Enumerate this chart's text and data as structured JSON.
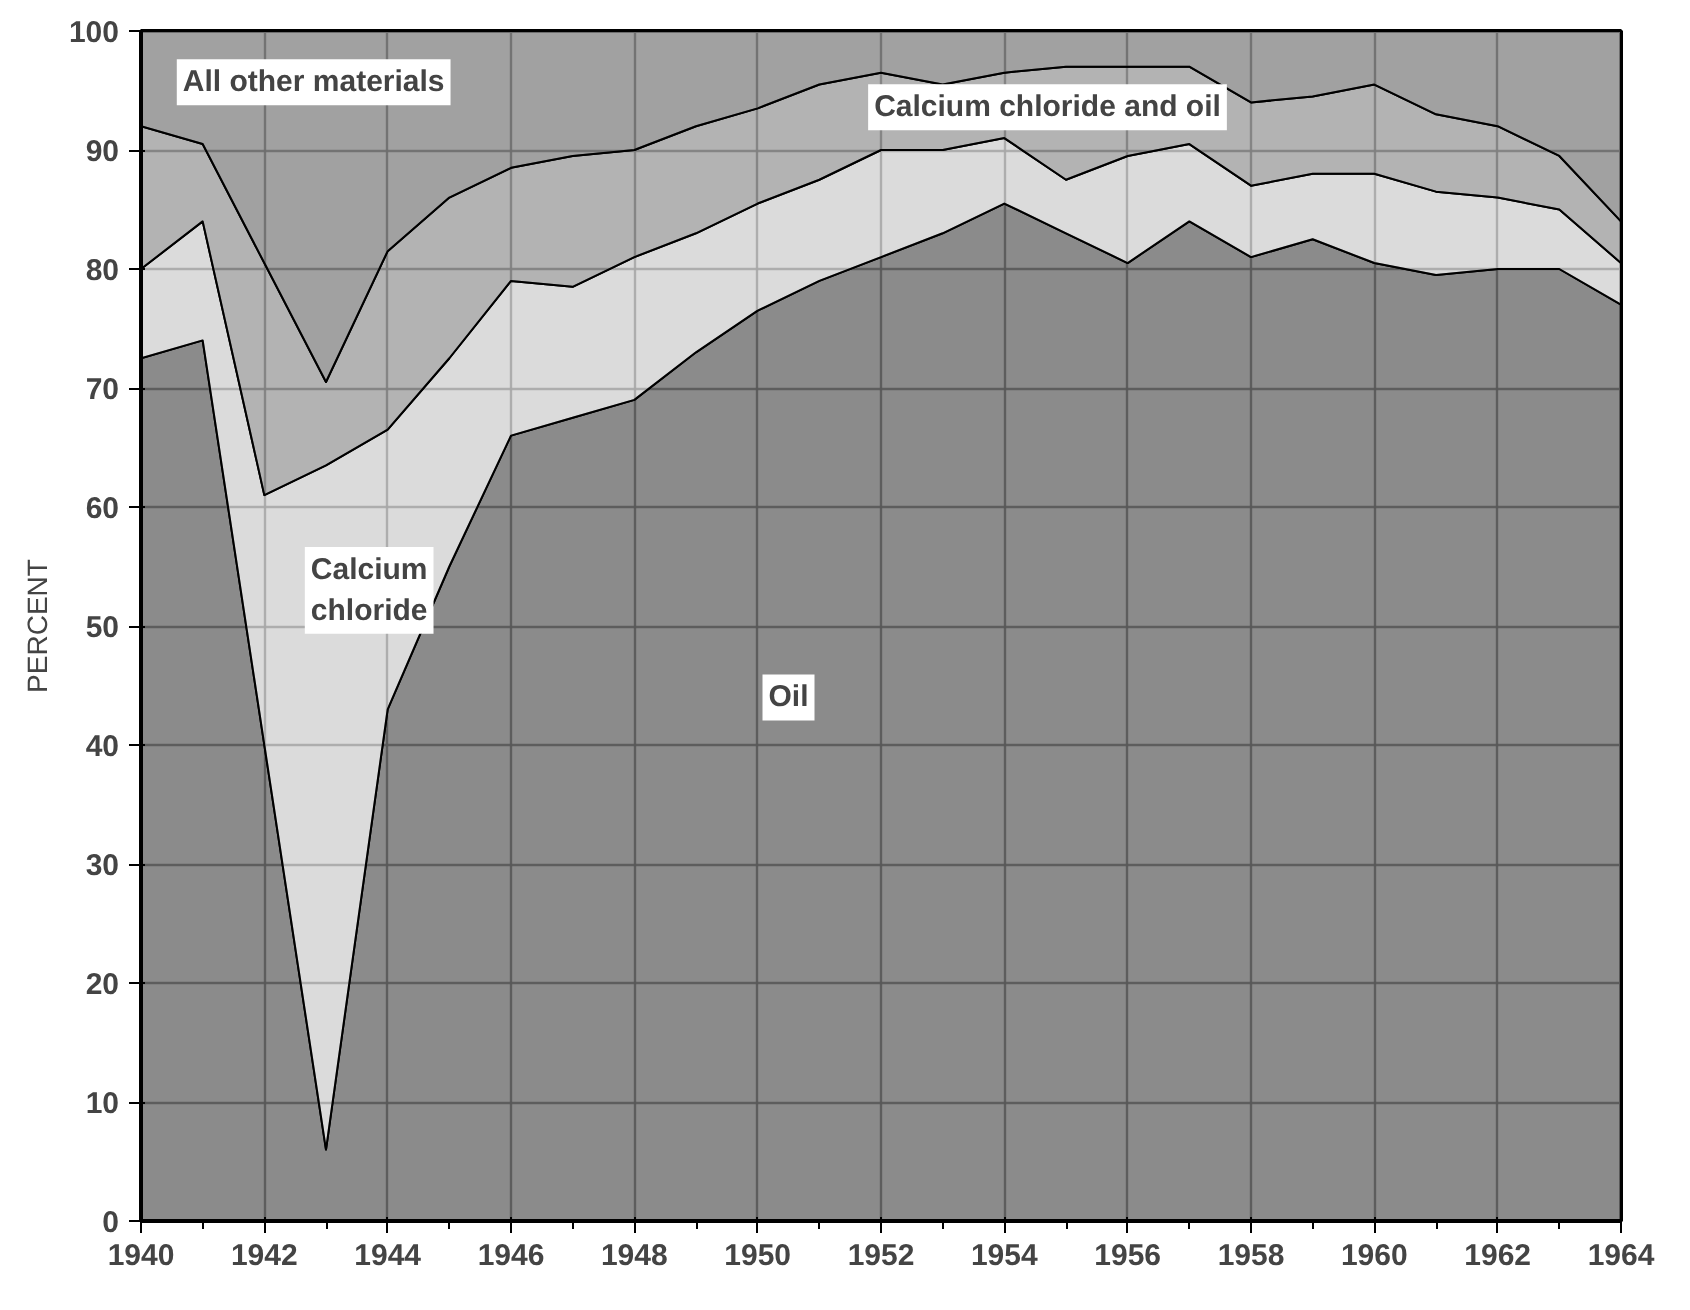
{
  "chart_data": {
    "type": "area",
    "stacked": true,
    "ylabel": "PERCENT",
    "x": [
      1940,
      1941,
      1942,
      1943,
      1944,
      1945,
      1946,
      1947,
      1948,
      1949,
      1950,
      1951,
      1952,
      1953,
      1954,
      1955,
      1956,
      1957,
      1958,
      1959,
      1960,
      1961,
      1962,
      1963,
      1964
    ],
    "series": [
      {
        "name": "Oil",
        "color": "#6e6e6e",
        "values": [
          72.5,
          74,
          40,
          6,
          43,
          55,
          66,
          67.5,
          69,
          73,
          76.5,
          79,
          81,
          83,
          85.5,
          83,
          80.5,
          84,
          81,
          82.5,
          80.5,
          79.5,
          80,
          80,
          77
        ]
      },
      {
        "name": "Calcium chloride",
        "color": "#d2d2d2",
        "values": [
          7.5,
          10,
          21,
          57.5,
          23.5,
          17.5,
          13,
          11,
          12,
          10,
          9,
          8.5,
          9,
          7,
          5.5,
          4.5,
          9,
          6.5,
          6,
          5.5,
          7.5,
          7,
          6,
          5,
          3.5
        ]
      },
      {
        "name": "Calcium chloride and oil",
        "color": "#a0a0a0",
        "values": [
          12,
          6.5,
          19.5,
          7,
          15,
          13.5,
          9.5,
          11,
          9,
          9,
          8,
          8,
          6.5,
          5.5,
          5.5,
          9.5,
          7.5,
          6.5,
          7,
          6.5,
          7.5,
          6.5,
          6,
          4.5,
          3.5
        ]
      },
      {
        "name": "All other materials",
        "color": "#8a8a8a",
        "values": [
          8,
          9.5,
          19.5,
          29.5,
          18.5,
          14,
          11.5,
          10.5,
          10,
          8,
          6.5,
          4.5,
          3.5,
          4.5,
          3.5,
          3,
          3,
          3,
          6,
          5.5,
          4.5,
          7,
          8,
          10.5,
          16
        ]
      }
    ],
    "xlim": [
      1940,
      1964
    ],
    "ylim": [
      0,
      100
    ],
    "xticks": [
      1940,
      1942,
      1944,
      1946,
      1948,
      1950,
      1952,
      1954,
      1956,
      1958,
      1960,
      1962,
      1964
    ],
    "yticks": [
      0,
      10,
      20,
      30,
      40,
      50,
      60,
      70,
      80,
      90,
      100
    ],
    "grid": true
  }
}
